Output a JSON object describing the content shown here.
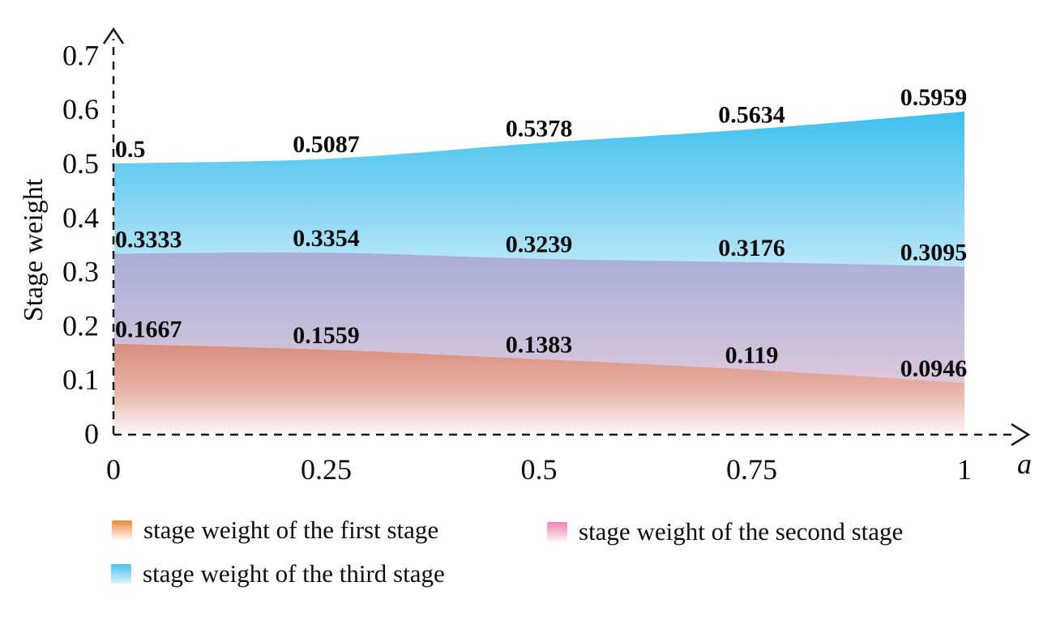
{
  "chart_data": {
    "type": "area",
    "x": [
      0,
      0.25,
      0.5,
      0.75,
      1
    ],
    "x_tick_labels": [
      "0",
      "0.25",
      "0.5",
      "0.75",
      "1"
    ],
    "xlabel": "a",
    "ylabel": "Stage weight",
    "xlim": [
      0,
      1
    ],
    "ylim": [
      0,
      0.7
    ],
    "y_ticks": [
      0,
      0.1,
      0.2,
      0.3,
      0.4,
      0.5,
      0.6,
      0.7
    ],
    "y_tick_labels": [
      "0",
      "0.1",
      "0.2",
      "0.3",
      "0.4",
      "0.5",
      "0.6",
      "0.7"
    ],
    "grid": false,
    "axis_style": "dashed-with-arrows",
    "legend_position": "bottom",
    "series": [
      {
        "name": "stage weight of the first stage",
        "values": [
          0.1667,
          0.1559,
          0.1383,
          0.119,
          0.0946
        ],
        "point_labels": [
          "0.1667",
          "0.1559",
          "0.1383",
          "0.119",
          "0.0946"
        ],
        "fill_top": "#D98D7D",
        "fill_mid": "#E9B6AB",
        "fill_bottom": "#FCF6F5",
        "legend_color_top": "#F0873F",
        "legend_color_bottom": "#FFF8F2"
      },
      {
        "name": "stage weight of the second stage",
        "values": [
          0.3333,
          0.3354,
          0.3239,
          0.3176,
          0.3095
        ],
        "point_labels": [
          "0.3333",
          "0.3354",
          "0.3239",
          "0.3176",
          "0.3095"
        ],
        "fill_top": "#A7AED9",
        "fill_mid": "#C4BDDA",
        "fill_bottom": "#DCC6DC",
        "legend_color_top": "#EE85B5",
        "legend_color_bottom": "#FDF0F6"
      },
      {
        "name": "stage weight of the third stage",
        "values": [
          0.5,
          0.5087,
          0.5378,
          0.5634,
          0.5959
        ],
        "point_labels": [
          "0.5",
          "0.5087",
          "0.5378",
          "0.5634",
          "0.5959"
        ],
        "fill_top": "#3EC1EE",
        "fill_mid": "#7FD3F3",
        "fill_bottom": "#B9E6F8",
        "legend_color_top": "#48C2EE",
        "legend_color_bottom": "#DCF2FB"
      }
    ],
    "text_color": "#0d0d0d",
    "axis_color": "#1a1a1a"
  }
}
